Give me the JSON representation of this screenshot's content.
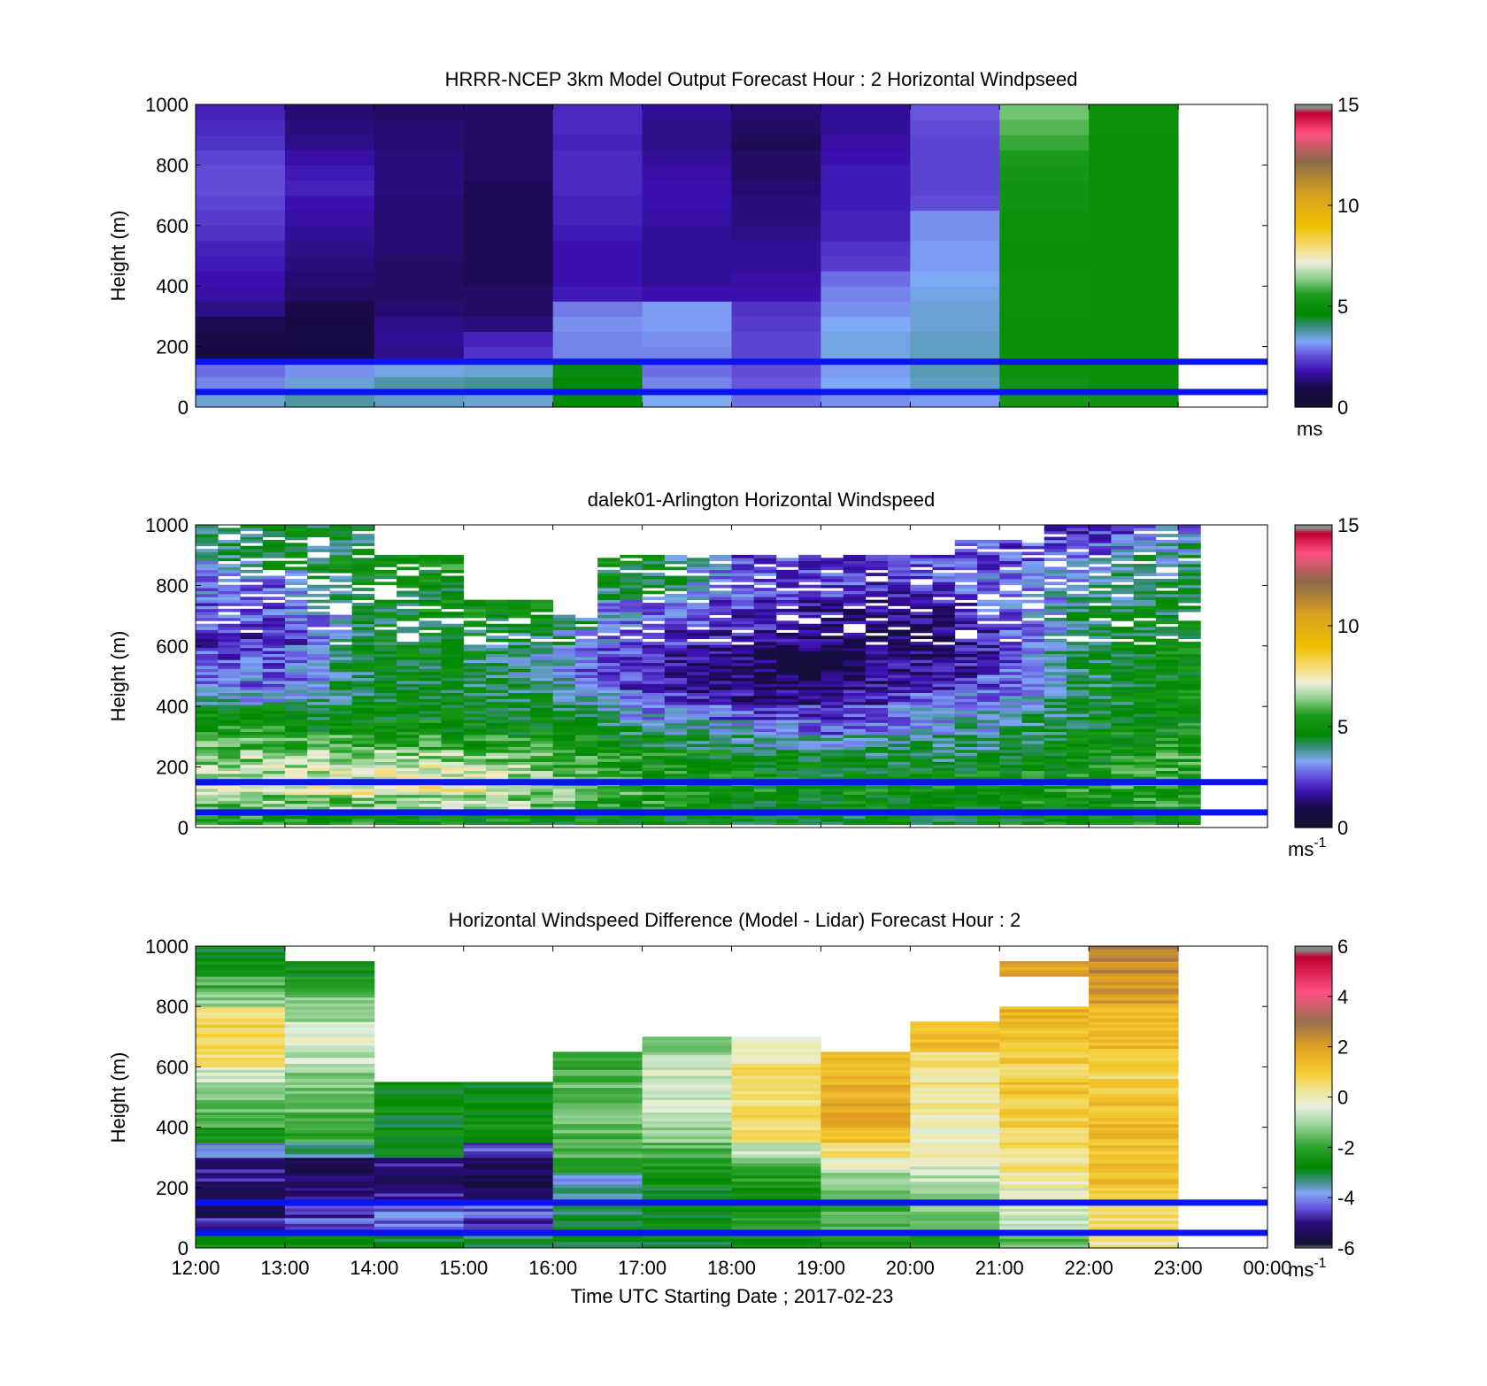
{
  "xlabel": "Time UTC  Starting Date ; 2017-02-23",
  "x_ticks": [
    "12:00",
    "13:00",
    "14:00",
    "15:00",
    "16:00",
    "17:00",
    "18:00",
    "19:00",
    "20:00",
    "21:00",
    "22:00",
    "23:00",
    "00:00"
  ],
  "chart_data": [
    {
      "type": "heatmap",
      "title": "HRRR-NCEP 3km Model Output   Forecast Hour : 2 Horizontal Windpseed",
      "ylabel": "Height (m)",
      "ylim": [
        0,
        1000
      ],
      "y_ticks": [
        "0",
        "200",
        "400",
        "600",
        "800",
        "1000"
      ],
      "colorbar": {
        "min": 0,
        "max": 15,
        "ticks": [
          "0",
          "5",
          "10",
          "15"
        ],
        "unit": "ms",
        "unit_exp": ""
      },
      "reference_lines_m": [
        150,
        50
      ],
      "time_bins_hours": [
        12,
        13,
        14,
        15,
        16,
        17,
        18,
        19,
        20,
        21,
        22
      ],
      "heights_m": [
        25,
        75,
        125,
        175,
        225,
        275,
        325,
        375,
        425,
        475,
        525,
        575,
        625,
        675,
        725,
        775,
        825,
        875,
        925,
        975
      ],
      "values_ms": [
        [
          3.5,
          3.8,
          3.6,
          3.5,
          4.8,
          3.3,
          2.8,
          3.1,
          3.2,
          5.4,
          5.2
        ],
        [
          3.0,
          3.5,
          3.8,
          3.9,
          4.6,
          3.0,
          2.6,
          3.3,
          3.6,
          5.2,
          5.0
        ],
        [
          2.8,
          3.1,
          3.4,
          3.5,
          4.5,
          2.8,
          2.5,
          3.2,
          3.7,
          5.1,
          5.0
        ],
        [
          0.8,
          0.8,
          1.5,
          2.2,
          3.0,
          3.0,
          2.4,
          3.4,
          3.6,
          5.0,
          5.0
        ],
        [
          0.9,
          0.7,
          1.6,
          2.0,
          3.0,
          3.1,
          2.4,
          3.4,
          3.6,
          5.0,
          5.0
        ],
        [
          1.1,
          0.8,
          1.5,
          1.4,
          3.1,
          3.2,
          2.3,
          3.3,
          3.5,
          5.0,
          5.0
        ],
        [
          1.5,
          1.0,
          1.3,
          1.2,
          2.9,
          3.2,
          2.2,
          3.1,
          3.5,
          5.1,
          5.0
        ],
        [
          1.7,
          1.2,
          1.2,
          1.2,
          1.9,
          1.8,
          1.8,
          3.0,
          3.4,
          5.1,
          5.0
        ],
        [
          1.8,
          1.3,
          1.2,
          1.1,
          1.8,
          1.6,
          1.7,
          2.8,
          3.3,
          5.1,
          5.0
        ],
        [
          1.9,
          1.4,
          1.2,
          1.1,
          1.8,
          1.6,
          1.6,
          2.3,
          3.2,
          5.0,
          5.0
        ],
        [
          2.0,
          1.5,
          1.3,
          1.1,
          1.8,
          1.6,
          1.6,
          2.2,
          3.2,
          5.0,
          5.0
        ],
        [
          2.2,
          1.6,
          1.3,
          1.1,
          1.9,
          1.6,
          1.5,
          2.0,
          3.1,
          5.1,
          5.0
        ],
        [
          2.3,
          1.7,
          1.3,
          1.1,
          2.0,
          1.7,
          1.4,
          2.0,
          3.1,
          5.1,
          5.0
        ],
        [
          2.4,
          1.8,
          1.3,
          1.1,
          2.0,
          1.8,
          1.4,
          1.9,
          2.5,
          5.2,
          5.0
        ],
        [
          2.5,
          2.0,
          1.4,
          1.1,
          2.1,
          1.8,
          1.3,
          1.9,
          2.4,
          5.2,
          5.0
        ],
        [
          2.5,
          1.9,
          1.4,
          1.2,
          2.1,
          1.7,
          1.2,
          1.9,
          2.4,
          5.4,
          5.0
        ],
        [
          2.4,
          1.7,
          1.4,
          1.2,
          2.1,
          1.6,
          1.2,
          1.8,
          2.4,
          5.6,
          5.0
        ],
        [
          2.2,
          1.5,
          1.3,
          1.2,
          2.0,
          1.5,
          1.1,
          1.7,
          2.4,
          5.8,
          5.0
        ],
        [
          2.1,
          1.4,
          1.3,
          1.2,
          2.1,
          1.5,
          1.2,
          1.6,
          2.5,
          6.0,
          5.1
        ],
        [
          2.0,
          1.3,
          1.2,
          1.2,
          2.1,
          1.6,
          1.3,
          1.6,
          2.6,
          6.2,
          5.1
        ]
      ]
    },
    {
      "type": "heatmap",
      "title": "dalek01-Arlington  Horizontal Windspeed",
      "ylabel": "Height (m)",
      "ylim": [
        0,
        1000
      ],
      "y_ticks": [
        "0",
        "200",
        "400",
        "600",
        "800",
        "1000"
      ],
      "colorbar": {
        "min": 0,
        "max": 15,
        "ticks": [
          "0",
          "5",
          "10",
          "15"
        ],
        "unit": "ms",
        "unit_exp": "-1"
      },
      "reference_lines_m": [
        150,
        50
      ],
      "time_range_hours": [
        12,
        23.25
      ],
      "columns": 45,
      "heights_m": [
        25,
        75,
        125,
        175,
        225,
        275,
        325,
        375,
        425,
        475,
        525,
        575,
        625,
        675,
        725,
        775,
        825,
        875,
        925,
        975
      ],
      "hour_profile_ms": [
        {
          "hour": 12,
          "values": [
            5.6,
            6.0,
            6.8,
            6.6,
            6.4,
            6.0,
            5.4,
            4.8,
            3.6,
            3.0,
            2.8,
            2.4,
            2.2,
            2.6,
            2.7,
            2.8,
            3.0,
            3.6,
            3.8,
            4.2
          ]
        },
        {
          "hour": 13,
          "values": [
            5.4,
            6.2,
            7.0,
            6.8,
            6.4,
            5.8,
            5.2,
            4.6,
            3.4,
            2.8,
            2.6,
            2.4,
            2.0,
            2.4,
            2.7,
            2.8,
            3.2,
            4.2,
            4.4,
            4.6
          ]
        },
        {
          "hour": 14,
          "values": [
            5.2,
            6.4,
            7.4,
            7.0,
            6.6,
            5.6,
            5.0,
            4.8,
            4.6,
            4.6,
            4.6,
            4.8,
            4.6,
            4.4,
            4.6,
            4.8,
            5.0,
            5.2,
            0,
            0
          ]
        },
        {
          "hour": 15,
          "values": [
            5.0,
            6.6,
            7.6,
            7.2,
            6.4,
            5.4,
            5.0,
            4.8,
            4.6,
            4.4,
            4.4,
            4.6,
            4.6,
            4.8,
            5.0,
            0,
            0,
            0,
            0,
            0
          ]
        },
        {
          "hour": 16,
          "values": [
            5.0,
            6.2,
            6.4,
            6.0,
            5.8,
            5.4,
            5.0,
            4.6,
            4.2,
            3.6,
            3.4,
            3.6,
            4.0,
            4.8,
            0,
            0,
            0,
            0,
            0,
            0
          ]
        },
        {
          "hour": 17,
          "values": [
            4.8,
            5.4,
            5.6,
            5.4,
            5.2,
            4.6,
            4.0,
            3.2,
            2.4,
            2.0,
            1.9,
            2.1,
            2.4,
            2.8,
            3.0,
            4.2,
            4.6,
            4.8,
            0,
            0
          ]
        },
        {
          "hour": 18,
          "values": [
            4.8,
            5.0,
            5.2,
            5.0,
            4.8,
            4.0,
            3.4,
            2.6,
            1.6,
            1.2,
            1.1,
            1.3,
            1.8,
            2.2,
            2.4,
            2.6,
            2.8,
            2.6,
            0,
            0
          ]
        },
        {
          "hour": 19,
          "values": [
            4.6,
            4.8,
            5.0,
            4.8,
            4.4,
            3.6,
            2.6,
            2.0,
            1.2,
            0.9,
            0.8,
            1.0,
            1.2,
            1.4,
            1.6,
            2.4,
            2.4,
            2.2,
            0,
            0
          ]
        },
        {
          "hour": 20,
          "values": [
            4.6,
            4.8,
            5.0,
            4.8,
            4.2,
            3.8,
            3.2,
            3.2,
            2.4,
            1.8,
            1.5,
            1.2,
            1.1,
            1.2,
            1.5,
            2.0,
            2.2,
            2.4,
            0,
            0
          ]
        },
        {
          "hour": 21,
          "values": [
            4.8,
            5.0,
            5.2,
            5.0,
            4.6,
            4.2,
            3.8,
            3.4,
            3.0,
            2.6,
            2.2,
            2.0,
            2.2,
            2.4,
            2.6,
            2.8,
            3.0,
            2.6,
            2.4,
            0
          ]
        },
        {
          "hour": 22,
          "values": [
            5.0,
            5.2,
            5.4,
            5.2,
            5.0,
            4.8,
            4.8,
            4.6,
            4.4,
            4.2,
            4.4,
            4.6,
            4.4,
            4.2,
            4.0,
            3.6,
            3.4,
            3.0,
            2.6,
            2.2
          ]
        },
        {
          "hour": 23,
          "values": [
            5.2,
            5.4,
            5.6,
            5.6,
            5.6,
            5.4,
            5.2,
            5.0,
            5.0,
            5.0,
            5.0,
            5.0,
            4.8,
            4.8,
            4.6,
            4.4,
            4.2,
            4.0,
            3.8,
            3.0
          ]
        }
      ]
    },
    {
      "type": "heatmap",
      "title": "Horizontal Windspeed Difference (Model - Lidar) Forecast Hour : 2",
      "ylabel": "Height (m)",
      "ylim": [
        0,
        1000
      ],
      "y_ticks": [
        "0",
        "200",
        "400",
        "600",
        "800",
        "1000"
      ],
      "colorbar": {
        "min": -6,
        "max": 6,
        "ticks": [
          "-6",
          "-4",
          "-2",
          "0",
          "2",
          "4",
          "6"
        ],
        "unit": "ms",
        "unit_exp": "-1"
      },
      "reference_lines_m": [
        150,
        50
      ],
      "time_bins_hours": [
        12,
        13,
        14,
        15,
        16,
        17,
        18,
        19,
        20,
        21,
        22
      ],
      "heights_m": [
        25,
        75,
        125,
        175,
        225,
        275,
        325,
        375,
        425,
        475,
        525,
        575,
        625,
        675,
        725,
        775,
        825,
        875,
        925,
        975
      ],
      "values_ms": [
        [
          -2.4,
          -2.6,
          -2.8,
          -3.0,
          -3.0,
          -2.8,
          -2.8,
          -2.4,
          -2.2,
          -1.6,
          0.2
        ],
        [
          -4.6,
          -4.4,
          -4.2,
          -4.6,
          -2.8,
          -2.6,
          -2.2,
          -1.6,
          -1.4,
          -0.8,
          0.4
        ],
        [
          -5.2,
          -4.8,
          -4.2,
          -4.4,
          -3.2,
          -2.8,
          -2.6,
          -1.8,
          -1.4,
          -0.6,
          0.6
        ],
        [
          -5.4,
          -5.0,
          -4.8,
          -5.2,
          -3.4,
          -2.8,
          -2.6,
          -1.6,
          -1.2,
          -0.4,
          1.0
        ],
        [
          -5.0,
          -5.2,
          -5.2,
          -5.4,
          -3.8,
          -2.4,
          -2.2,
          -1.2,
          -0.8,
          0.0,
          1.2
        ],
        [
          -5.0,
          -5.4,
          -5.0,
          -5.2,
          -2.2,
          -2.2,
          -1.8,
          -0.4,
          -0.4,
          0.4,
          1.3
        ],
        [
          -4.0,
          -3.4,
          -2.6,
          -4.4,
          -1.8,
          -1.6,
          -0.6,
          0.6,
          -0.2,
          0.6,
          1.3
        ],
        [
          -2.4,
          -2.0,
          -2.6,
          -2.8,
          -1.6,
          -1.2,
          0.4,
          1.2,
          -0.1,
          0.8,
          1.4
        ],
        [
          -1.8,
          -1.8,
          -2.8,
          -2.6,
          -1.4,
          -0.8,
          0.6,
          1.6,
          0.0,
          0.9,
          1.4
        ],
        [
          -1.4,
          -1.6,
          -2.6,
          -2.6,
          -1.6,
          -0.6,
          0.6,
          1.8,
          0.2,
          1.0,
          1.3
        ],
        [
          -1.0,
          -1.4,
          -2.8,
          -2.8,
          -1.6,
          -0.6,
          0.6,
          1.6,
          0.4,
          1.2,
          1.0
        ],
        [
          -0.6,
          -1.2,
          null,
          null,
          -1.8,
          -0.6,
          0.5,
          1.4,
          0.3,
          0.8,
          0.8
        ],
        [
          0.4,
          -0.8,
          null,
          null,
          -2.0,
          -1.0,
          0.2,
          1.2,
          0.4,
          1.0,
          1.0
        ],
        [
          0.6,
          -0.4,
          null,
          null,
          null,
          -1.4,
          -0.2,
          null,
          1.4,
          1.2,
          1.4
        ],
        [
          0.8,
          -0.6,
          null,
          null,
          null,
          null,
          null,
          null,
          1.4,
          1.4,
          1.4
        ],
        [
          0.4,
          -1.2,
          null,
          null,
          null,
          null,
          null,
          null,
          null,
          1.6,
          1.4
        ],
        [
          -1.2,
          -1.4,
          null,
          null,
          null,
          null,
          null,
          null,
          null,
          null,
          2.0
        ],
        [
          -1.8,
          -2.0,
          null,
          null,
          null,
          null,
          null,
          null,
          null,
          null,
          2.2
        ],
        [
          -2.4,
          -2.6,
          null,
          null,
          null,
          null,
          null,
          null,
          null,
          1.8,
          2.4
        ],
        [
          -2.8,
          null,
          null,
          null,
          null,
          null,
          null,
          null,
          null,
          null,
          2.6
        ]
      ]
    }
  ]
}
